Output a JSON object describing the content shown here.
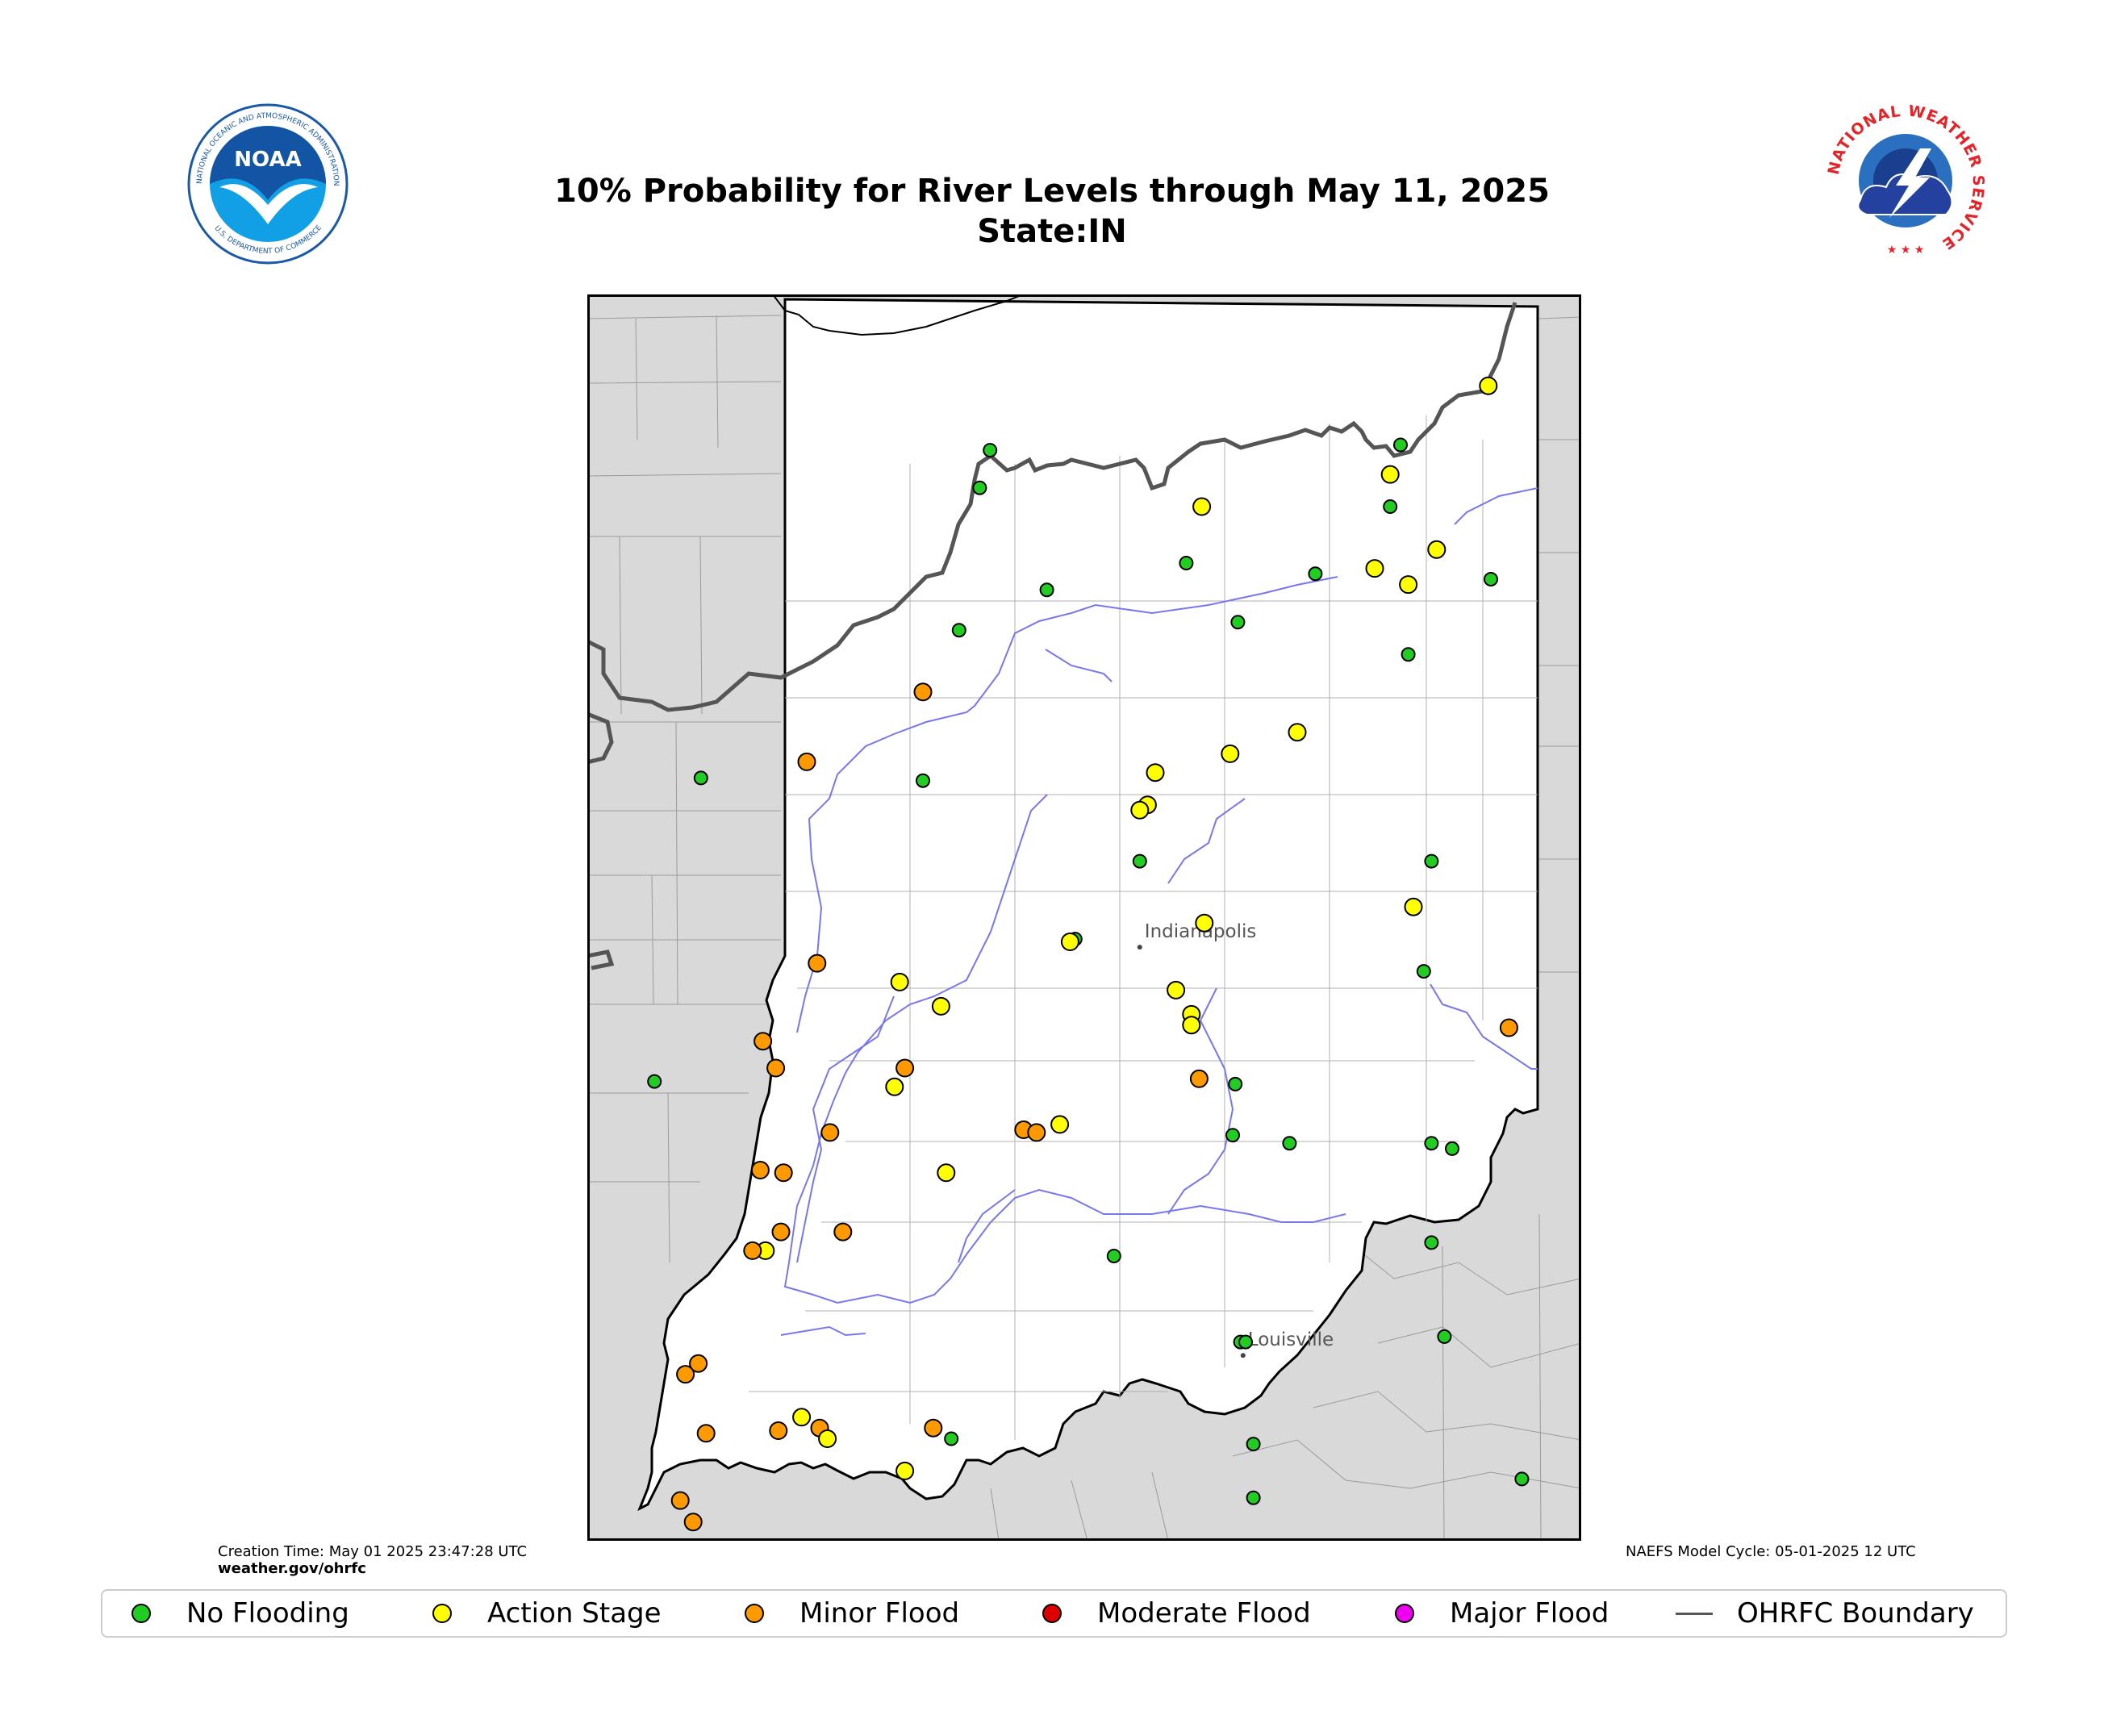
{
  "title": {
    "line1": "10% Probability for River Levels through May 11, 2025",
    "line2": "State:IN"
  },
  "logos": {
    "noaa": {
      "center_text": "NOAA",
      "ring_text": "NATIONAL OCEANIC AND ATMOSPHERIC ADMINISTRATION",
      "bottom_text": "U.S. DEPARTMENT OF COMMERCE"
    },
    "nws": {
      "ring_text": "NATIONAL WEATHER SERVICE"
    }
  },
  "footer": {
    "creation_time": "Creation Time: May 01 2025 23:47:28 UTC",
    "site": "weather.gov/ohrfc",
    "model_cycle": "NAEFS Model Cycle: 05-01-2025 12 UTC"
  },
  "map": {
    "cities": [
      {
        "name": "Indianapolis",
        "lon": -86.16,
        "lat": 39.77
      },
      {
        "name": "Louisville",
        "lon": -85.76,
        "lat": 38.25
      }
    ],
    "colors": {
      "background_state": "#d9d9d9",
      "indiana": "#ffffff",
      "river": "#7777ee",
      "ohrfc_boundary": "#555555",
      "none": "#22cc22",
      "action": "#ffff00",
      "minor": "#ff9900",
      "moderate": "#dd0000",
      "major": "#ee00ee"
    },
    "gauges": [
      {
        "lon": -86.74,
        "lat": 41.62,
        "cat": "none"
      },
      {
        "lon": -86.78,
        "lat": 41.48,
        "cat": "none"
      },
      {
        "lon": -86.52,
        "lat": 41.1,
        "cat": "none"
      },
      {
        "lon": -86.86,
        "lat": 40.95,
        "cat": "none"
      },
      {
        "lon": -87.0,
        "lat": 40.72,
        "cat": "minor"
      },
      {
        "lon": -87.86,
        "lat": 40.4,
        "cat": "none"
      },
      {
        "lon": -87.45,
        "lat": 40.46,
        "cat": "minor"
      },
      {
        "lon": -87.0,
        "lat": 40.39,
        "cat": "none"
      },
      {
        "lon": -85.92,
        "lat": 41.41,
        "cat": "action"
      },
      {
        "lon": -85.98,
        "lat": 41.2,
        "cat": "none"
      },
      {
        "lon": -85.78,
        "lat": 40.98,
        "cat": "none"
      },
      {
        "lon": -85.48,
        "lat": 41.16,
        "cat": "none"
      },
      {
        "lon": -85.15,
        "lat": 41.64,
        "cat": "none"
      },
      {
        "lon": -85.19,
        "lat": 41.53,
        "cat": "action"
      },
      {
        "lon": -85.19,
        "lat": 41.41,
        "cat": "none"
      },
      {
        "lon": -85.25,
        "lat": 41.18,
        "cat": "action"
      },
      {
        "lon": -85.01,
        "lat": 41.25,
        "cat": "action"
      },
      {
        "lon": -85.12,
        "lat": 41.12,
        "cat": "action"
      },
      {
        "lon": -85.12,
        "lat": 40.86,
        "cat": "none"
      },
      {
        "lon": -84.81,
        "lat": 41.86,
        "cat": "action"
      },
      {
        "lon": -84.8,
        "lat": 41.14,
        "cat": "none"
      },
      {
        "lon": -85.55,
        "lat": 40.57,
        "cat": "action"
      },
      {
        "lon": -85.81,
        "lat": 40.49,
        "cat": "action"
      },
      {
        "lon": -86.1,
        "lat": 40.42,
        "cat": "action"
      },
      {
        "lon": -86.13,
        "lat": 40.3,
        "cat": "action"
      },
      {
        "lon": -86.16,
        "lat": 40.28,
        "cat": "action"
      },
      {
        "lon": -86.16,
        "lat": 40.09,
        "cat": "none"
      },
      {
        "lon": -85.03,
        "lat": 40.09,
        "cat": "none"
      },
      {
        "lon": -85.1,
        "lat": 39.92,
        "cat": "action"
      },
      {
        "lon": -85.06,
        "lat": 39.68,
        "cat": "none"
      },
      {
        "lon": -85.91,
        "lat": 39.86,
        "cat": "action"
      },
      {
        "lon": -86.41,
        "lat": 39.8,
        "cat": "none"
      },
      {
        "lon": -86.43,
        "lat": 39.79,
        "cat": "action"
      },
      {
        "lon": -87.41,
        "lat": 39.71,
        "cat": "minor"
      },
      {
        "lon": -87.09,
        "lat": 39.64,
        "cat": "action"
      },
      {
        "lon": -86.93,
        "lat": 39.55,
        "cat": "action"
      },
      {
        "lon": -86.02,
        "lat": 39.61,
        "cat": "action"
      },
      {
        "lon": -85.96,
        "lat": 39.52,
        "cat": "action"
      },
      {
        "lon": -85.96,
        "lat": 39.48,
        "cat": "action"
      },
      {
        "lon": -84.73,
        "lat": 39.47,
        "cat": "minor"
      },
      {
        "lon": -87.62,
        "lat": 39.42,
        "cat": "minor"
      },
      {
        "lon": -87.57,
        "lat": 39.32,
        "cat": "minor"
      },
      {
        "lon": -87.07,
        "lat": 39.32,
        "cat": "minor"
      },
      {
        "lon": -87.11,
        "lat": 39.25,
        "cat": "action"
      },
      {
        "lon": -85.93,
        "lat": 39.28,
        "cat": "minor"
      },
      {
        "lon": -85.79,
        "lat": 39.26,
        "cat": "none"
      },
      {
        "lon": -88.04,
        "lat": 39.27,
        "cat": "none"
      },
      {
        "lon": -87.36,
        "lat": 39.08,
        "cat": "minor"
      },
      {
        "lon": -86.61,
        "lat": 39.09,
        "cat": "minor"
      },
      {
        "lon": -86.47,
        "lat": 39.11,
        "cat": "action"
      },
      {
        "lon": -86.56,
        "lat": 39.08,
        "cat": "minor"
      },
      {
        "lon": -85.8,
        "lat": 39.07,
        "cat": "none"
      },
      {
        "lon": -85.58,
        "lat": 39.04,
        "cat": "none"
      },
      {
        "lon": -85.03,
        "lat": 39.04,
        "cat": "none"
      },
      {
        "lon": -84.95,
        "lat": 39.02,
        "cat": "none"
      },
      {
        "lon": -87.63,
        "lat": 38.94,
        "cat": "minor"
      },
      {
        "lon": -87.54,
        "lat": 38.93,
        "cat": "minor"
      },
      {
        "lon": -86.91,
        "lat": 38.93,
        "cat": "action"
      },
      {
        "lon": -87.55,
        "lat": 38.71,
        "cat": "minor"
      },
      {
        "lon": -87.31,
        "lat": 38.71,
        "cat": "minor"
      },
      {
        "lon": -87.61,
        "lat": 38.64,
        "cat": "action"
      },
      {
        "lon": -87.66,
        "lat": 38.64,
        "cat": "minor"
      },
      {
        "lon": -86.26,
        "lat": 38.62,
        "cat": "none"
      },
      {
        "lon": -85.03,
        "lat": 38.67,
        "cat": "none"
      },
      {
        "lon": -85.77,
        "lat": 38.3,
        "cat": "none"
      },
      {
        "lon": -85.75,
        "lat": 38.3,
        "cat": "none"
      },
      {
        "lon": -84.98,
        "lat": 38.32,
        "cat": "none"
      },
      {
        "lon": -87.92,
        "lat": 38.18,
        "cat": "minor"
      },
      {
        "lon": -87.87,
        "lat": 38.22,
        "cat": "minor"
      },
      {
        "lon": -87.47,
        "lat": 38.02,
        "cat": "action"
      },
      {
        "lon": -87.84,
        "lat": 37.96,
        "cat": "minor"
      },
      {
        "lon": -87.56,
        "lat": 37.97,
        "cat": "minor"
      },
      {
        "lon": -87.4,
        "lat": 37.98,
        "cat": "minor"
      },
      {
        "lon": -86.96,
        "lat": 37.98,
        "cat": "minor"
      },
      {
        "lon": -86.89,
        "lat": 37.94,
        "cat": "none"
      },
      {
        "lon": -87.37,
        "lat": 37.94,
        "cat": "action"
      },
      {
        "lon": -87.07,
        "lat": 37.82,
        "cat": "action"
      },
      {
        "lon": -87.94,
        "lat": 37.71,
        "cat": "minor"
      },
      {
        "lon": -87.89,
        "lat": 37.63,
        "cat": "minor"
      },
      {
        "lon": -85.72,
        "lat": 37.92,
        "cat": "none"
      },
      {
        "lon": -85.72,
        "lat": 37.72,
        "cat": "none"
      },
      {
        "lon": -84.68,
        "lat": 37.79,
        "cat": "none"
      }
    ]
  },
  "legend": {
    "items": [
      {
        "label": "No Flooding",
        "color": "#22cc22"
      },
      {
        "label": "Action Stage",
        "color": "#ffff00"
      },
      {
        "label": "Minor Flood",
        "color": "#ff9900"
      },
      {
        "label": "Moderate Flood",
        "color": "#dd0000"
      },
      {
        "label": "Major Flood",
        "color": "#ee00ee"
      }
    ],
    "boundary_label": "OHRFC Boundary"
  }
}
